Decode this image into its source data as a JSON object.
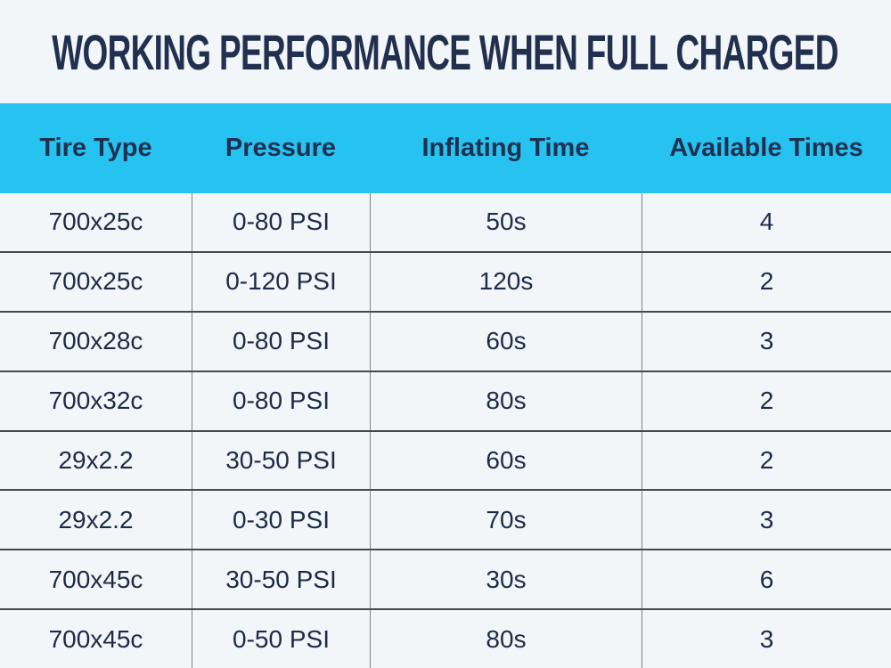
{
  "colors": {
    "background": "#f2f6f9",
    "header_background": "#26c3f0",
    "title_text": "#22304f",
    "cell_text": "#1e2b47",
    "row_border": "#45494f",
    "column_border": "#7e838a"
  },
  "chart_data": {
    "type": "table",
    "title": "WORKING PERFORMANCE WHEN FULL CHARGED",
    "columns": [
      "Tire Type",
      "Pressure",
      "Inflating Time",
      "Available Times"
    ],
    "rows": [
      [
        "700x25c",
        "0-80 PSI",
        "50s",
        "4"
      ],
      [
        "700x25c",
        "0-120 PSI",
        "120s",
        "2"
      ],
      [
        "700x28c",
        "0-80 PSI",
        "60s",
        "3"
      ],
      [
        "700x32c",
        "0-80 PSI",
        "80s",
        "2"
      ],
      [
        "29x2.2",
        "30-50 PSI",
        "60s",
        "2"
      ],
      [
        "29x2.2",
        "0-30 PSI",
        "70s",
        "3"
      ],
      [
        "700x45c",
        "30-50 PSI",
        "30s",
        "6"
      ],
      [
        "700x45c",
        "0-50 PSI",
        "80s",
        "3"
      ]
    ],
    "legend": "none",
    "grid": "on"
  }
}
